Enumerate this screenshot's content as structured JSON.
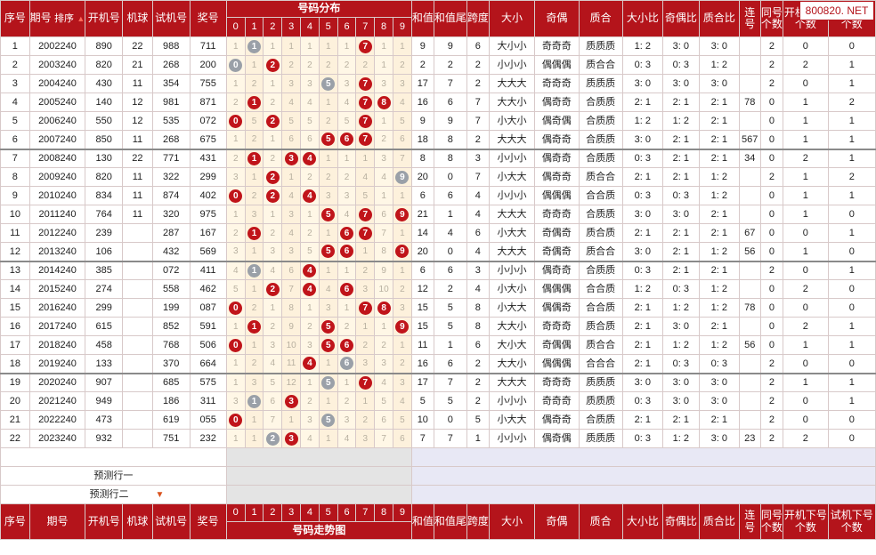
{
  "watermark": "800820. NET",
  "header": {
    "seq": "序号",
    "period": "期号",
    "sort_label": "排序",
    "open": "开机号",
    "machine": "机球",
    "trial": "试机号",
    "award": "奖号",
    "dist_title": "号码分布",
    "sum": "和值",
    "sum_tail": "和值尾",
    "span": "跨度",
    "bigsmall": "大小",
    "oddeven": "奇偶",
    "primecomp": "质合",
    "bs_ratio": "大小比",
    "oe_ratio": "奇偶比",
    "pc_ratio": "质合比",
    "consec": "连号",
    "same": "同号个数",
    "open_next": "开机下号个数",
    "trial_next": "试机下号个数"
  },
  "digits": [
    "0",
    "1",
    "2",
    "3",
    "4",
    "5",
    "6",
    "7",
    "8",
    "9"
  ],
  "footer": {
    "seq": "序号",
    "period": "期号",
    "open": "开机号",
    "machine": "机球",
    "trial": "试机号",
    "award": "奖号",
    "trend_title": "号码走势图",
    "sum": "和值",
    "sum_tail": "和值尾",
    "span": "跨度",
    "bigsmall": "大小",
    "oddeven": "奇偶",
    "primecomp": "质合",
    "bs_ratio": "大小比",
    "oe_ratio": "奇偶比",
    "pc_ratio": "质合比",
    "consec": "连号",
    "same": "同号个数",
    "open_next": "开机下号个数",
    "trial_next": "试机下号个数"
  },
  "predict": [
    "预测行一",
    "预测行二"
  ],
  "rows": [
    {
      "seq": "1",
      "period": "2002240",
      "open": "890",
      "machine": "22",
      "trial": "988",
      "award": "711",
      "dist": [
        "1",
        "1",
        "1",
        "1",
        "1",
        "1",
        "1",
        "7",
        "1",
        "1"
      ],
      "balls": {
        "1": "gray",
        "7": "red"
      },
      "sum": "9",
      "tail": "9",
      "span": "6",
      "bs": "大小小",
      "oe": "奇奇奇",
      "pc": "质质质",
      "bsr": "1: 2",
      "oer": "3: 0",
      "pcr": "3: 0",
      "consec": "",
      "same": "2",
      "opn": "0",
      "trn": "0",
      "sep": false
    },
    {
      "seq": "2",
      "period": "2003240",
      "open": "820",
      "machine": "21",
      "trial": "268",
      "award": "200",
      "dist": [
        "0",
        "1",
        "2",
        "2",
        "2",
        "2",
        "2",
        "2",
        "1",
        "2"
      ],
      "balls": {
        "0": "gray",
        "2": "red"
      },
      "sum": "2",
      "tail": "2",
      "span": "2",
      "bs": "小小小",
      "oe": "偶偶偶",
      "pc": "质合合",
      "bsr": "0: 3",
      "oer": "0: 3",
      "pcr": "1: 2",
      "consec": "",
      "same": "2",
      "opn": "2",
      "trn": "1",
      "sep": false
    },
    {
      "seq": "3",
      "period": "2004240",
      "open": "430",
      "machine": "11",
      "trial": "354",
      "award": "755",
      "dist": [
        "1",
        "2",
        "1",
        "3",
        "3",
        "5",
        "3",
        "7",
        "3",
        "3"
      ],
      "balls": {
        "5": "gray",
        "7": "red"
      },
      "sum": "17",
      "tail": "7",
      "span": "2",
      "bs": "大大大",
      "oe": "奇奇奇",
      "pc": "质质质",
      "bsr": "3: 0",
      "oer": "3: 0",
      "pcr": "3: 0",
      "consec": "",
      "same": "2",
      "opn": "0",
      "trn": "1",
      "sep": false
    },
    {
      "seq": "4",
      "period": "2005240",
      "open": "140",
      "machine": "12",
      "trial": "981",
      "award": "871",
      "dist": [
        "2",
        "1",
        "2",
        "4",
        "4",
        "1",
        "4",
        "7",
        "8",
        "4"
      ],
      "balls": {
        "1": "red",
        "7": "red",
        "8": "red"
      },
      "sum": "16",
      "tail": "6",
      "span": "7",
      "bs": "大大小",
      "oe": "偶奇奇",
      "pc": "合质质",
      "bsr": "2: 1",
      "oer": "2: 1",
      "pcr": "2: 1",
      "consec": "78",
      "same": "0",
      "opn": "1",
      "trn": "2",
      "sep": false
    },
    {
      "seq": "5",
      "period": "2006240",
      "open": "550",
      "machine": "12",
      "trial": "535",
      "award": "072",
      "dist": [
        "0",
        "5",
        "2",
        "5",
        "5",
        "2",
        "5",
        "7",
        "1",
        "5"
      ],
      "balls": {
        "0": "red",
        "2": "red",
        "7": "red"
      },
      "sum": "9",
      "tail": "9",
      "span": "7",
      "bs": "小大小",
      "oe": "偶奇偶",
      "pc": "合质质",
      "bsr": "1: 2",
      "oer": "1: 2",
      "pcr": "2: 1",
      "consec": "",
      "same": "0",
      "opn": "1",
      "trn": "1",
      "sep": false
    },
    {
      "seq": "6",
      "period": "2007240",
      "open": "850",
      "machine": "11",
      "trial": "268",
      "award": "675",
      "dist": [
        "1",
        "2",
        "1",
        "6",
        "6",
        "5",
        "6",
        "7",
        "2",
        "6"
      ],
      "balls": {
        "5": "red",
        "6": "red",
        "7": "red"
      },
      "sum": "18",
      "tail": "8",
      "span": "2",
      "bs": "大大大",
      "oe": "偶奇奇",
      "pc": "合质质",
      "bsr": "3: 0",
      "oer": "2: 1",
      "pcr": "2: 1",
      "consec": "567",
      "same": "0",
      "opn": "1",
      "trn": "1",
      "sep": false
    },
    {
      "seq": "7",
      "period": "2008240",
      "open": "130",
      "machine": "22",
      "trial": "771",
      "award": "431",
      "dist": [
        "2",
        "1",
        "2",
        "3",
        "4",
        "1",
        "1",
        "1",
        "3",
        "7"
      ],
      "balls": {
        "1": "red",
        "3": "red",
        "4": "red"
      },
      "sum": "8",
      "tail": "8",
      "span": "3",
      "bs": "小小小",
      "oe": "偶奇奇",
      "pc": "合质质",
      "bsr": "0: 3",
      "oer": "2: 1",
      "pcr": "2: 1",
      "consec": "34",
      "same": "0",
      "opn": "2",
      "trn": "1",
      "sep": true
    },
    {
      "seq": "8",
      "period": "2009240",
      "open": "820",
      "machine": "11",
      "trial": "322",
      "award": "299",
      "dist": [
        "3",
        "1",
        "2",
        "1",
        "2",
        "2",
        "2",
        "4",
        "4",
        "9"
      ],
      "balls": {
        "2": "red",
        "9": "gray"
      },
      "sum": "20",
      "tail": "0",
      "span": "7",
      "bs": "小大大",
      "oe": "偶奇奇",
      "pc": "质合合",
      "bsr": "2: 1",
      "oer": "2: 1",
      "pcr": "1: 2",
      "consec": "",
      "same": "2",
      "opn": "1",
      "trn": "2",
      "sep": false
    },
    {
      "seq": "9",
      "period": "2010240",
      "open": "834",
      "machine": "11",
      "trial": "874",
      "award": "402",
      "dist": [
        "0",
        "2",
        "2",
        "4",
        "4",
        "3",
        "3",
        "5",
        "1",
        "1"
      ],
      "balls": {
        "0": "red",
        "2": "red",
        "4": "red"
      },
      "sum": "6",
      "tail": "6",
      "span": "4",
      "bs": "小小小",
      "oe": "偶偶偶",
      "pc": "合合质",
      "bsr": "0: 3",
      "oer": "0: 3",
      "pcr": "1: 2",
      "consec": "",
      "same": "0",
      "opn": "1",
      "trn": "1",
      "sep": false
    },
    {
      "seq": "10",
      "period": "2011240",
      "open": "764",
      "machine": "11",
      "trial": "320",
      "award": "975",
      "dist": [
        "1",
        "3",
        "1",
        "3",
        "1",
        "5",
        "4",
        "7",
        "6",
        "9"
      ],
      "balls": {
        "5": "red",
        "7": "red",
        "9": "red"
      },
      "sum": "21",
      "tail": "1",
      "span": "4",
      "bs": "大大大",
      "oe": "奇奇奇",
      "pc": "合质质",
      "bsr": "3: 0",
      "oer": "3: 0",
      "pcr": "2: 1",
      "consec": "",
      "same": "0",
      "opn": "1",
      "trn": "0",
      "sep": false
    },
    {
      "seq": "11",
      "period": "2012240",
      "open": "239",
      "machine": "",
      "trial": "287",
      "award": "167",
      "dist": [
        "2",
        "1",
        "2",
        "4",
        "2",
        "1",
        "6",
        "7",
        "7",
        "1"
      ],
      "balls": {
        "1": "red",
        "6": "red",
        "7": "red"
      },
      "sum": "14",
      "tail": "4",
      "span": "6",
      "bs": "小大大",
      "oe": "奇偶奇",
      "pc": "质合质",
      "bsr": "2: 1",
      "oer": "2: 1",
      "pcr": "2: 1",
      "consec": "67",
      "same": "0",
      "opn": "0",
      "trn": "1",
      "sep": false
    },
    {
      "seq": "12",
      "period": "2013240",
      "open": "106",
      "machine": "",
      "trial": "432",
      "award": "569",
      "dist": [
        "3",
        "1",
        "3",
        "3",
        "5",
        "5",
        "6",
        "1",
        "8",
        "9"
      ],
      "balls": {
        "5": "red",
        "6": "red",
        "9": "red"
      },
      "sum": "20",
      "tail": "0",
      "span": "4",
      "bs": "大大大",
      "oe": "奇偶奇",
      "pc": "质合合",
      "bsr": "3: 0",
      "oer": "2: 1",
      "pcr": "1: 2",
      "consec": "56",
      "same": "0",
      "opn": "1",
      "trn": "0",
      "sep": false
    },
    {
      "seq": "13",
      "period": "2014240",
      "open": "385",
      "machine": "",
      "trial": "072",
      "award": "411",
      "dist": [
        "4",
        "1",
        "4",
        "6",
        "4",
        "1",
        "1",
        "2",
        "9",
        "1"
      ],
      "balls": {
        "1": "gray",
        "4": "red"
      },
      "sum": "6",
      "tail": "6",
      "span": "3",
      "bs": "小小小",
      "oe": "偶奇奇",
      "pc": "合质质",
      "bsr": "0: 3",
      "oer": "2: 1",
      "pcr": "2: 1",
      "consec": "",
      "same": "2",
      "opn": "0",
      "trn": "1",
      "sep": true
    },
    {
      "seq": "14",
      "period": "2015240",
      "open": "274",
      "machine": "",
      "trial": "558",
      "award": "462",
      "dist": [
        "5",
        "1",
        "2",
        "7",
        "4",
        "4",
        "6",
        "3",
        "10",
        "2"
      ],
      "balls": {
        "2": "red",
        "4": "red",
        "6": "red"
      },
      "sum": "12",
      "tail": "2",
      "span": "4",
      "bs": "小大小",
      "oe": "偶偶偶",
      "pc": "合合质",
      "bsr": "1: 2",
      "oer": "0: 3",
      "pcr": "1: 2",
      "consec": "",
      "same": "0",
      "opn": "2",
      "trn": "0",
      "sep": false
    },
    {
      "seq": "15",
      "period": "2016240",
      "open": "299",
      "machine": "",
      "trial": "199",
      "award": "087",
      "dist": [
        "0",
        "2",
        "1",
        "8",
        "1",
        "3",
        "1",
        "7",
        "8",
        "3"
      ],
      "balls": {
        "0": "red",
        "7": "red",
        "8": "red"
      },
      "sum": "15",
      "tail": "5",
      "span": "8",
      "bs": "小大大",
      "oe": "偶偶奇",
      "pc": "合合质",
      "bsr": "2: 1",
      "oer": "1: 2",
      "pcr": "1: 2",
      "consec": "78",
      "same": "0",
      "opn": "0",
      "trn": "0",
      "sep": false
    },
    {
      "seq": "16",
      "period": "2017240",
      "open": "615",
      "machine": "",
      "trial": "852",
      "award": "591",
      "dist": [
        "1",
        "1",
        "2",
        "9",
        "2",
        "5",
        "2",
        "1",
        "1",
        "9"
      ],
      "balls": {
        "1": "red",
        "5": "red",
        "9": "red"
      },
      "sum": "15",
      "tail": "5",
      "span": "8",
      "bs": "大大小",
      "oe": "奇奇奇",
      "pc": "质合质",
      "bsr": "2: 1",
      "oer": "3: 0",
      "pcr": "2: 1",
      "consec": "",
      "same": "0",
      "opn": "2",
      "trn": "1",
      "sep": false
    },
    {
      "seq": "17",
      "period": "2018240",
      "open": "458",
      "machine": "",
      "trial": "768",
      "award": "506",
      "dist": [
        "0",
        "1",
        "3",
        "10",
        "3",
        "5",
        "6",
        "2",
        "2",
        "1"
      ],
      "balls": {
        "0": "red",
        "5": "red",
        "6": "red"
      },
      "sum": "11",
      "tail": "1",
      "span": "6",
      "bs": "大小大",
      "oe": "奇偶偶",
      "pc": "质合合",
      "bsr": "2: 1",
      "oer": "1: 2",
      "pcr": "1: 2",
      "consec": "56",
      "same": "0",
      "opn": "1",
      "trn": "1",
      "sep": false
    },
    {
      "seq": "18",
      "period": "2019240",
      "open": "133",
      "machine": "",
      "trial": "370",
      "award": "664",
      "dist": [
        "1",
        "2",
        "4",
        "11",
        "4",
        "1",
        "6",
        "3",
        "3",
        "2"
      ],
      "balls": {
        "4": "red",
        "6": "gray"
      },
      "sum": "16",
      "tail": "6",
      "span": "2",
      "bs": "大大小",
      "oe": "偶偶偶",
      "pc": "合合合",
      "bsr": "2: 1",
      "oer": "0: 3",
      "pcr": "0: 3",
      "consec": "",
      "same": "2",
      "opn": "0",
      "trn": "0",
      "sep": false
    },
    {
      "seq": "19",
      "period": "2020240",
      "open": "907",
      "machine": "",
      "trial": "685",
      "award": "575",
      "dist": [
        "1",
        "3",
        "5",
        "12",
        "1",
        "5",
        "1",
        "7",
        "4",
        "3"
      ],
      "balls": {
        "5": "gray",
        "7": "red"
      },
      "sum": "17",
      "tail": "7",
      "span": "2",
      "bs": "大大大",
      "oe": "奇奇奇",
      "pc": "质质质",
      "bsr": "3: 0",
      "oer": "3: 0",
      "pcr": "3: 0",
      "consec": "",
      "same": "2",
      "opn": "1",
      "trn": "1",
      "sep": true
    },
    {
      "seq": "20",
      "period": "2021240",
      "open": "949",
      "machine": "",
      "trial": "186",
      "award": "311",
      "dist": [
        "3",
        "1",
        "6",
        "3",
        "2",
        "1",
        "2",
        "1",
        "5",
        "4"
      ],
      "balls": {
        "1": "gray",
        "3": "red"
      },
      "sum": "5",
      "tail": "5",
      "span": "2",
      "bs": "小小小",
      "oe": "奇奇奇",
      "pc": "质质质",
      "bsr": "0: 3",
      "oer": "3: 0",
      "pcr": "3: 0",
      "consec": "",
      "same": "2",
      "opn": "0",
      "trn": "1",
      "sep": false
    },
    {
      "seq": "21",
      "period": "2022240",
      "open": "473",
      "machine": "",
      "trial": "619",
      "award": "055",
      "dist": [
        "0",
        "1",
        "7",
        "1",
        "3",
        "5",
        "3",
        "2",
        "6",
        "5"
      ],
      "balls": {
        "0": "red",
        "5": "gray"
      },
      "sum": "10",
      "tail": "0",
      "span": "5",
      "bs": "小大大",
      "oe": "偶奇奇",
      "pc": "合质质",
      "bsr": "2: 1",
      "oer": "2: 1",
      "pcr": "2: 1",
      "consec": "",
      "same": "2",
      "opn": "0",
      "trn": "0",
      "sep": false
    },
    {
      "seq": "22",
      "period": "2023240",
      "open": "932",
      "machine": "",
      "trial": "751",
      "award": "232",
      "dist": [
        "1",
        "1",
        "2",
        "3",
        "4",
        "1",
        "4",
        "3",
        "7",
        "6"
      ],
      "balls": {
        "2": "gray",
        "3": "red"
      },
      "sum": "7",
      "tail": "7",
      "span": "1",
      "bs": "小小小",
      "oe": "偶奇偶",
      "pc": "质质质",
      "bsr": "0: 3",
      "oer": "1: 2",
      "pcr": "3: 0",
      "consec": "23",
      "same": "2",
      "opn": "2",
      "trn": "0",
      "sep": false
    }
  ]
}
